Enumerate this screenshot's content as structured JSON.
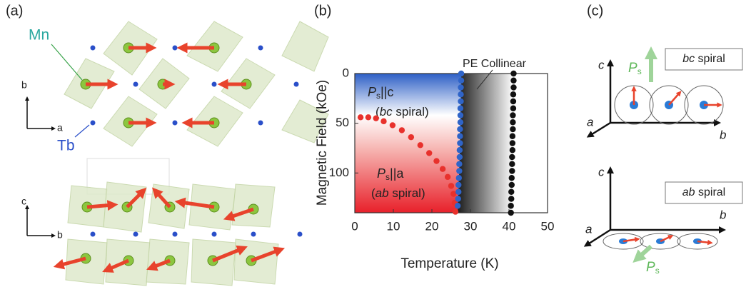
{
  "panel_a": {
    "label": "(a)",
    "mn_label": "Mn",
    "tb_label": "Tb",
    "upper_axes": {
      "vertical": "b",
      "horizontal": "a"
    },
    "lower_axes": {
      "vertical": "c",
      "horizontal": "b"
    }
  },
  "chart_data": {
    "type": "scatter",
    "panel_label": "(b)",
    "x_label": "Temperature (K)",
    "y_label": "Magnetic Field (kOe)",
    "xlim": [
      0,
      50
    ],
    "xticks": [
      0,
      10,
      20,
      30,
      40,
      50
    ],
    "ylim": [
      140,
      0
    ],
    "yticks": [
      0,
      50,
      100
    ],
    "annotations": {
      "pe_collinear": "PE Collinear",
      "bc_phase": {
        "symbol": "P",
        "subscript": "s",
        "relation": "||c",
        "open": "(",
        "italic": "bc",
        "close": " spiral)"
      },
      "ab_phase": {
        "symbol": "P",
        "subscript": "s",
        "relation": "||a",
        "open": "(",
        "italic": "ab",
        "close": " spiral)"
      }
    },
    "series": [
      {
        "color": "#e8312c",
        "x": [
          1.5,
          3.5,
          5.5,
          7.5,
          9.8,
          12.2,
          14.6,
          17,
          19.3,
          21.2,
          22.8,
          24.1,
          25,
          25.6,
          25.9,
          26.1
        ],
        "values": [
          44,
          44,
          45,
          48,
          52,
          57,
          64,
          72,
          80,
          88,
          96,
          104,
          113,
          121,
          130,
          139
        ]
      },
      {
        "color": "#2f64c8",
        "x": [
          27.6,
          27.6,
          27.5,
          27.5,
          27.5,
          27.4,
          27.4,
          27.4,
          27.3,
          27.3,
          27.3,
          27.2,
          27.2,
          27.1,
          27.1,
          27.0,
          26.9,
          26.9,
          26.8,
          26.7
        ],
        "values": [
          0,
          7,
          14,
          21,
          28,
          35,
          42,
          49,
          56,
          63,
          70,
          77,
          84,
          91,
          98,
          105,
          112,
          119,
          126,
          133
        ]
      },
      {
        "color": "#111111",
        "x": [
          41.2,
          41.2,
          41.2,
          41.1,
          41.1,
          41.1,
          41.0,
          41.0,
          41.0,
          40.9,
          40.9,
          40.9,
          40.8,
          40.8,
          40.8,
          40.7,
          40.7,
          40.6,
          40.6,
          40.5,
          40.5
        ],
        "values": [
          0,
          7,
          14,
          21,
          28,
          35,
          42,
          49,
          56,
          63,
          70,
          77,
          84,
          91,
          98,
          105,
          112,
          119,
          126,
          133,
          140
        ]
      }
    ]
  },
  "panel_c": {
    "label": "(c)",
    "upper": {
      "axis_c": "c",
      "axis_a": "a",
      "axis_b": "b",
      "polarization": {
        "symbol": "P",
        "subscript": "s"
      },
      "box": {
        "italic": "bc",
        "rest": " spiral"
      }
    },
    "lower": {
      "axis_c": "c",
      "axis_a": "a",
      "axis_b": "b",
      "polarization": {
        "symbol": "P",
        "subscript": "s"
      },
      "box": {
        "italic": "ab",
        "rest": " spiral"
      }
    }
  }
}
